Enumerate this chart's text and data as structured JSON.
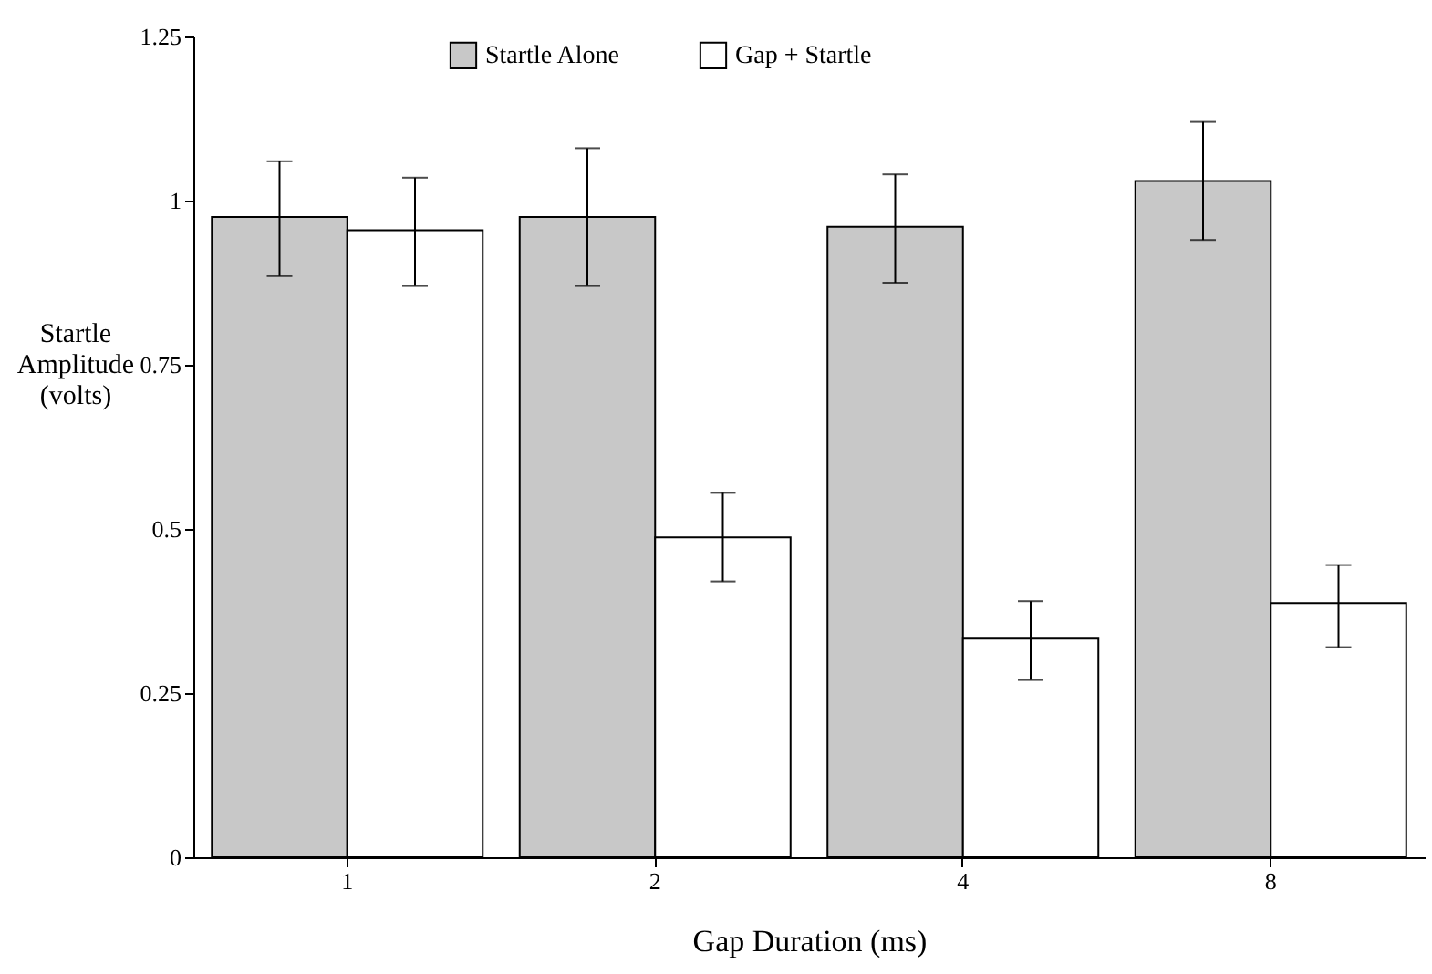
{
  "chart_data": {
    "type": "bar",
    "xlabel": "Gap Duration (ms)",
    "ylabel": "Startle Amplitude (volts)",
    "categories": [
      "1",
      "2",
      "4",
      "8"
    ],
    "series": [
      {
        "name": "Startle Alone",
        "color": "#c8c8c8",
        "values": [
          0.975,
          0.975,
          0.96,
          1.03
        ],
        "errors": [
          [
            0.885,
            1.06
          ],
          [
            0.87,
            1.08
          ],
          [
            0.875,
            1.04
          ],
          [
            0.94,
            1.12
          ]
        ]
      },
      {
        "name": "Gap + Startle",
        "color": "#ffffff",
        "values": [
          0.955,
          0.487,
          0.333,
          0.387
        ],
        "errors": [
          [
            0.87,
            1.035
          ],
          [
            0.42,
            0.555
          ],
          [
            0.27,
            0.39
          ],
          [
            0.32,
            0.445
          ]
        ]
      }
    ],
    "ylim": [
      0,
      1.25
    ],
    "yticks": [
      0,
      0.25,
      0.5,
      0.75,
      1,
      1.25
    ],
    "legend": "top",
    "grid": false
  }
}
